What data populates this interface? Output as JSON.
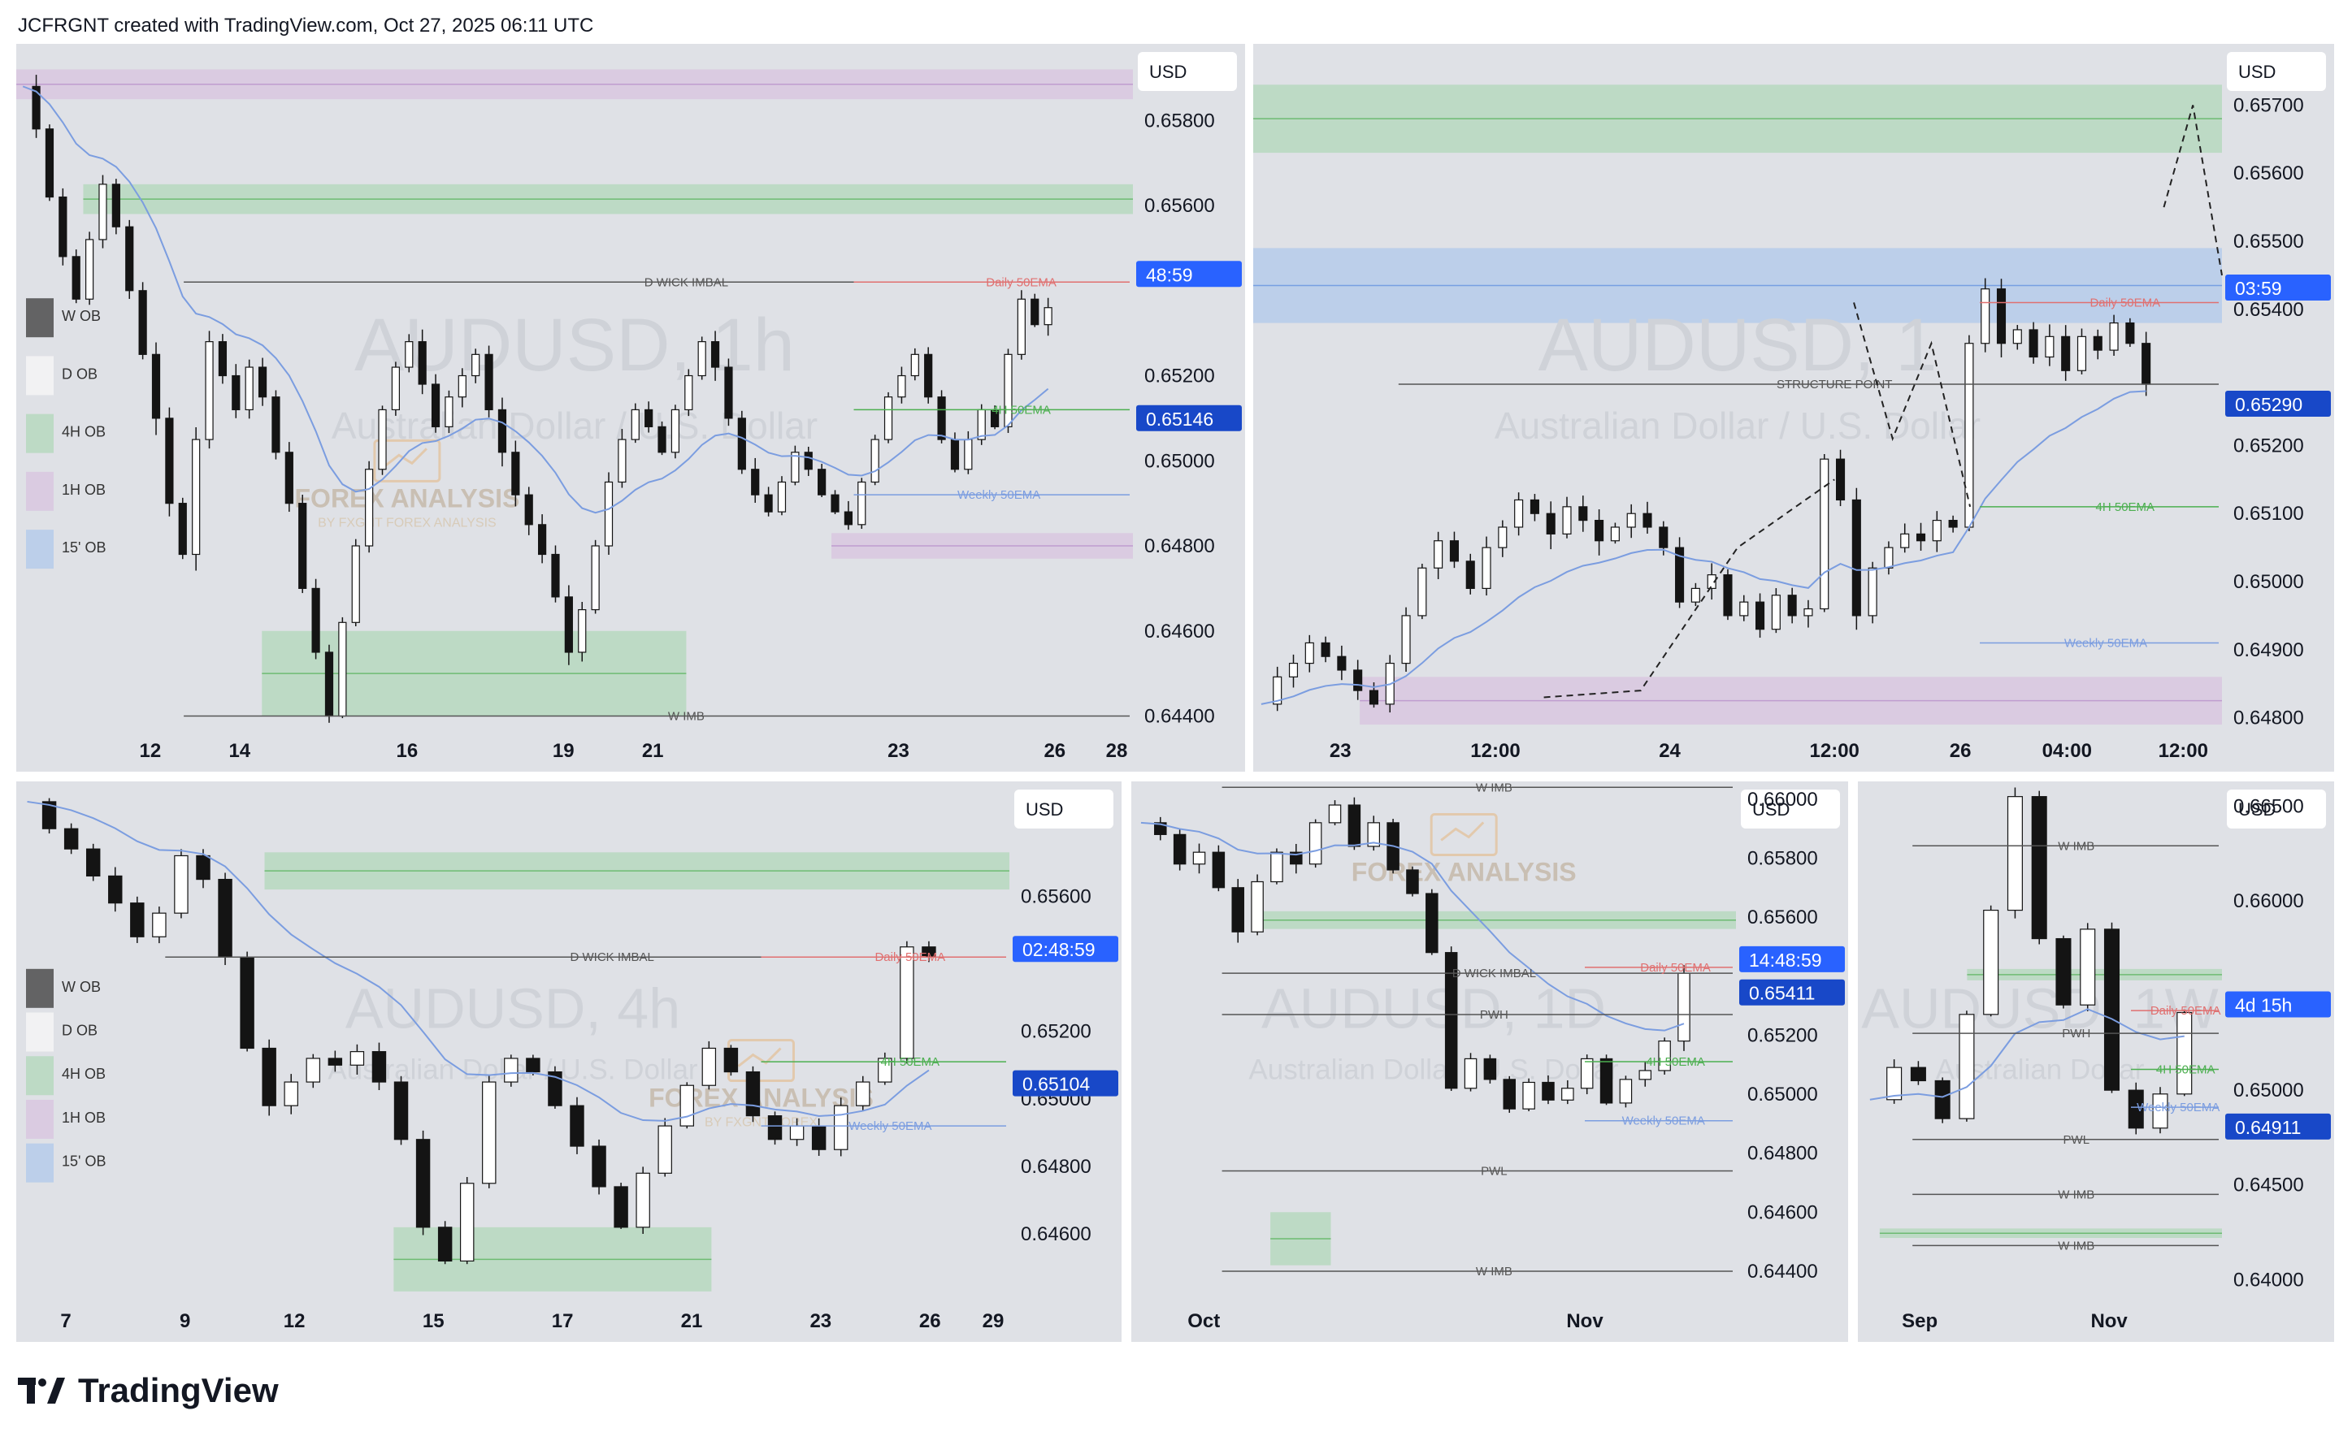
{
  "header": {
    "credit": "JCFRGNT created with TradingView.com, Oct 27, 2025 06:11 UTC"
  },
  "brand": {
    "name": "TradingView"
  },
  "colors": {
    "panel_bg": "#dfe1e6",
    "candle": "#141414",
    "ema_blue": "#7b9de0",
    "green_zone": "#b9d9c1",
    "purple_zone": "#d9c9e0",
    "blue_zone": "#b8cdea",
    "price_tag": "#2962ff",
    "price_tag_dark": "#1848c8"
  },
  "chart_data": [
    {
      "id": "p1",
      "type": "candlestick",
      "watermark": "AUDUSD, 1h",
      "watermark_sub": "Australian Dollar / U.S. Dollar",
      "currency": "USD",
      "ylim": [
        0.6438,
        0.6598
      ],
      "y_ticks": [
        "0.65800",
        "0.65600",
        "0.65200",
        "0.65000",
        "0.64800",
        "0.64600",
        "0.64400"
      ],
      "x_ticks": [
        "12",
        "14",
        "16",
        "19",
        "21",
        "23",
        "26",
        "28"
      ],
      "price_tags": [
        {
          "label": "48:59",
          "value": 0.6542
        },
        {
          "label": "0.65146",
          "value": 0.65146
        }
      ],
      "series": [
        {
          "name": "price",
          "values": [
            0.6588,
            0.6578,
            0.6562,
            0.6548,
            0.6538,
            0.6552,
            0.6565,
            0.6555,
            0.654,
            0.6525,
            0.651,
            0.649,
            0.6478,
            0.6505,
            0.6528,
            0.652,
            0.6512,
            0.6522,
            0.6515,
            0.6502,
            0.649,
            0.647,
            0.6455,
            0.644,
            0.6462,
            0.648,
            0.6498,
            0.6512,
            0.6522,
            0.6528,
            0.6518,
            0.6508,
            0.6515,
            0.652,
            0.6525,
            0.6512,
            0.6502,
            0.6492,
            0.6485,
            0.6478,
            0.6468,
            0.6455,
            0.6465,
            0.648,
            0.6495,
            0.6505,
            0.6512,
            0.6508,
            0.6502,
            0.6512,
            0.652,
            0.6528,
            0.6522,
            0.651,
            0.6498,
            0.6492,
            0.6488,
            0.6495,
            0.6502,
            0.6498,
            0.6492,
            0.6488,
            0.6485,
            0.6495,
            0.6505,
            0.6515,
            0.652,
            0.6525,
            0.6515,
            0.6505,
            0.6498,
            0.6505,
            0.6512,
            0.6508,
            0.6525,
            0.6538,
            0.6532,
            0.6536
          ]
        }
      ],
      "levels": [
        {
          "label": "D WICK IMBAL",
          "value": 0.6542
        },
        {
          "label": "W IMB",
          "value": 0.644
        },
        {
          "label": "Daily 50EMA",
          "value": 0.6542
        },
        {
          "label": "4H 50EMA",
          "value": 0.6512
        },
        {
          "label": "Weekly 50EMA",
          "value": 0.6492
        }
      ],
      "legend": [
        "W OB",
        "D OB",
        "4H OB",
        "1H OB",
        "15' OB"
      ],
      "wm_logo": "FOREX ANALYSIS",
      "wm_logo_sub": "BY FXGNT FOREX ANALYSIS"
    },
    {
      "id": "p2",
      "type": "candlestick",
      "watermark": "AUDUSD, 1",
      "watermark_sub": "Australian Dollar / U.S. Dollar",
      "currency": "USD",
      "ylim": [
        0.6479,
        0.6579
      ],
      "y_ticks": [
        "0.65700",
        "0.65600",
        "0.65500",
        "0.65400",
        "0.65200",
        "0.65100",
        "0.65000",
        "0.64900",
        "0.64800"
      ],
      "x_ticks": [
        "23",
        "12:00",
        "24",
        "12:00",
        "26",
        "04:00",
        "12:00"
      ],
      "price_tags": [
        {
          "label": "03:59",
          "value": 0.6542
        },
        {
          "label": "0.65290",
          "value": 0.6529
        }
      ],
      "series": [
        {
          "name": "price",
          "values": [
            0.6482,
            0.6486,
            0.6488,
            0.6491,
            0.6489,
            0.6487,
            0.6484,
            0.6482,
            0.6488,
            0.6495,
            0.6502,
            0.6506,
            0.6503,
            0.6499,
            0.6505,
            0.6508,
            0.6512,
            0.651,
            0.6507,
            0.6511,
            0.6509,
            0.6506,
            0.6508,
            0.651,
            0.6508,
            0.6505,
            0.6497,
            0.6499,
            0.6501,
            0.6495,
            0.6497,
            0.6493,
            0.6498,
            0.6495,
            0.6496,
            0.6518,
            0.6512,
            0.6495,
            0.6502,
            0.6505,
            0.6507,
            0.6506,
            0.6509,
            0.6508,
            0.6535,
            0.6543,
            0.6535,
            0.6537,
            0.6533,
            0.6536,
            0.6531,
            0.6536,
            0.6534,
            0.6538,
            0.6535,
            0.6529
          ]
        }
      ],
      "levels": [
        {
          "label": "STRUCTURE POINT",
          "value": 0.6529
        },
        {
          "label": "Daily 50EMA",
          "value": 0.6541
        },
        {
          "label": "4H 50EMA",
          "value": 0.6511
        },
        {
          "label": "Weekly 50EMA",
          "value": 0.6491
        }
      ]
    },
    {
      "id": "p3",
      "type": "candlestick",
      "watermark": "AUDUSD, 4h",
      "watermark_sub": "Australian Dollar / U.S. Dollar",
      "currency": "USD",
      "ylim": [
        0.6442,
        0.6594
      ],
      "y_ticks": [
        "0.65600",
        "0.65200",
        "0.65000",
        "0.64800",
        "0.64600"
      ],
      "x_ticks": [
        "7",
        "9",
        "12",
        "15",
        "17",
        "21",
        "23",
        "26",
        "29"
      ],
      "price_tags": [
        {
          "label": "02:48:59",
          "value": 0.6542
        },
        {
          "label": "0.65104",
          "value": 0.65104
        }
      ],
      "series": [
        {
          "name": "price",
          "values": [
            0.6588,
            0.658,
            0.6574,
            0.6566,
            0.6558,
            0.6548,
            0.6555,
            0.6572,
            0.6565,
            0.6542,
            0.6515,
            0.6498,
            0.6505,
            0.6512,
            0.651,
            0.6514,
            0.6505,
            0.6488,
            0.6462,
            0.6452,
            0.6475,
            0.6505,
            0.6512,
            0.6508,
            0.6498,
            0.6486,
            0.6474,
            0.6462,
            0.6478,
            0.6492,
            0.6504,
            0.6515,
            0.6508,
            0.6495,
            0.6488,
            0.6492,
            0.6485,
            0.6498,
            0.6505,
            0.6512,
            0.6545,
            0.6542
          ]
        }
      ],
      "levels": [
        {
          "label": "D WICK IMBAL",
          "value": 0.6542
        },
        {
          "label": "Daily 50EMA",
          "value": 0.6542
        },
        {
          "label": "4H 50EMA",
          "value": 0.6511
        },
        {
          "label": "Weekly 50EMA",
          "value": 0.6492
        }
      ],
      "legend": [
        "W OB",
        "D OB",
        "4H OB",
        "1H OB",
        "15' OB"
      ],
      "wm_logo": "FOREX ANALYSIS",
      "wm_logo_sub": "BY FXGNT FOREX"
    },
    {
      "id": "p4",
      "type": "candlestick",
      "watermark": "AUDUSD, 1D",
      "watermark_sub": "Australian Dollar / U.S. Dollar",
      "currency": "USD",
      "ylim": [
        0.6432,
        0.6606
      ],
      "y_ticks": [
        "0.66000",
        "0.65800",
        "0.65600",
        "0.65200",
        "0.65000",
        "0.64800",
        "0.64600",
        "0.64400"
      ],
      "x_ticks": [
        "Oct",
        "Nov"
      ],
      "price_tags": [
        {
          "label": "14:48:59",
          "value": 0.6543
        },
        {
          "label": "0.65411",
          "value": 0.65411
        }
      ],
      "series": [
        {
          "name": "price",
          "values": [
            0.6592,
            0.6588,
            0.6578,
            0.6582,
            0.657,
            0.6555,
            0.6572,
            0.6582,
            0.6578,
            0.6592,
            0.6598,
            0.6584,
            0.6592,
            0.6576,
            0.6568,
            0.6548,
            0.6502,
            0.6512,
            0.6505,
            0.6495,
            0.6504,
            0.6498,
            0.6502,
            0.6512,
            0.6497,
            0.6505,
            0.6508,
            0.6518,
            0.6541
          ]
        }
      ],
      "levels": [
        {
          "label": "W IMB",
          "value": 0.6604
        },
        {
          "label": "D WICK IMBAL",
          "value": 0.6541
        },
        {
          "label": "Daily 50EMA",
          "value": 0.6543
        },
        {
          "label": "PWH",
          "value": 0.6527
        },
        {
          "label": "4H 50EMA",
          "value": 0.6511
        },
        {
          "label": "Weekly 50EMA",
          "value": 0.6491
        },
        {
          "label": "PWL",
          "value": 0.6474
        },
        {
          "label": "W IMB",
          "value": 0.644
        }
      ],
      "wm_logo": "FOREX ANALYSIS"
    },
    {
      "id": "p5",
      "type": "candlestick",
      "watermark": "AUDUSD, 1W",
      "watermark_sub": "Australian Dollar",
      "currency": "USD",
      "ylim": [
        0.6392,
        0.6663
      ],
      "y_ticks": [
        "0.66500",
        "0.66000",
        "0.65000",
        "0.64500",
        "0.64000"
      ],
      "x_ticks": [
        "Sep",
        "Nov"
      ],
      "price_tags": [
        {
          "label": "4d 15h",
          "value": 0.6541
        },
        {
          "label": "0.64911",
          "value": 0.64911
        }
      ],
      "series": [
        {
          "name": "price",
          "values": [
            0.6495,
            0.6512,
            0.6505,
            0.6485,
            0.654,
            0.6595,
            0.6655,
            0.658,
            0.6545,
            0.6585,
            0.65,
            0.648,
            0.6498,
            0.6541
          ]
        }
      ],
      "levels": [
        {
          "label": "W IMB",
          "value": 0.6629
        },
        {
          "label": "Daily 50EMA",
          "value": 0.6542
        },
        {
          "label": "PWH",
          "value": 0.653
        },
        {
          "label": "4H 50EMA",
          "value": 0.6511
        },
        {
          "label": "Weekly 50EMA",
          "value": 0.6491
        },
        {
          "label": "PWL",
          "value": 0.6474
        },
        {
          "label": "W IMB",
          "value": 0.6445
        },
        {
          "label": "W IMB",
          "value": 0.6418
        }
      ]
    }
  ]
}
